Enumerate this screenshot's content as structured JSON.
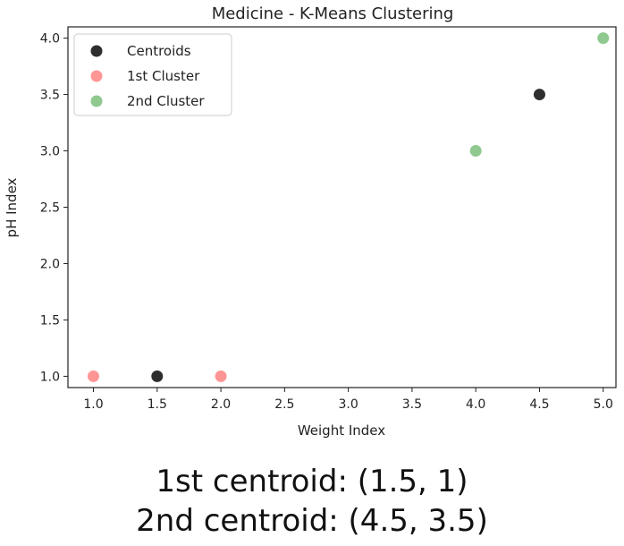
{
  "chart_data": {
    "type": "scatter",
    "title": "Medicine - K-Means Clustering",
    "xlabel": "Weight Index",
    "ylabel": "pH Index",
    "xlim": [
      0.8,
      5.1
    ],
    "ylim": [
      0.9,
      4.1
    ],
    "xticks": [
      "1.0",
      "1.5",
      "2.0",
      "2.5",
      "3.0",
      "3.5",
      "4.0",
      "4.5",
      "5.0"
    ],
    "yticks": [
      "1.0",
      "1.5",
      "2.0",
      "2.5",
      "3.0",
      "3.5",
      "4.0"
    ],
    "grid": false,
    "legend_position": "top-left",
    "series": [
      {
        "name": "Centroids",
        "color": "#000000",
        "points": [
          [
            1.5,
            1.0
          ],
          [
            4.5,
            3.5
          ]
        ]
      },
      {
        "name": "1st Cluster",
        "color": "#ff5555",
        "points": [
          [
            1.0,
            1.0
          ],
          [
            2.0,
            1.0
          ]
        ]
      },
      {
        "name": "2nd Cluster",
        "color": "#4aa84a",
        "points": [
          [
            4.0,
            3.0
          ],
          [
            5.0,
            4.0
          ]
        ]
      }
    ]
  },
  "captions": {
    "line1": "1st centroid: (1.5, 1)",
    "line2": "2nd centroid: (4.5, 3.5)"
  }
}
